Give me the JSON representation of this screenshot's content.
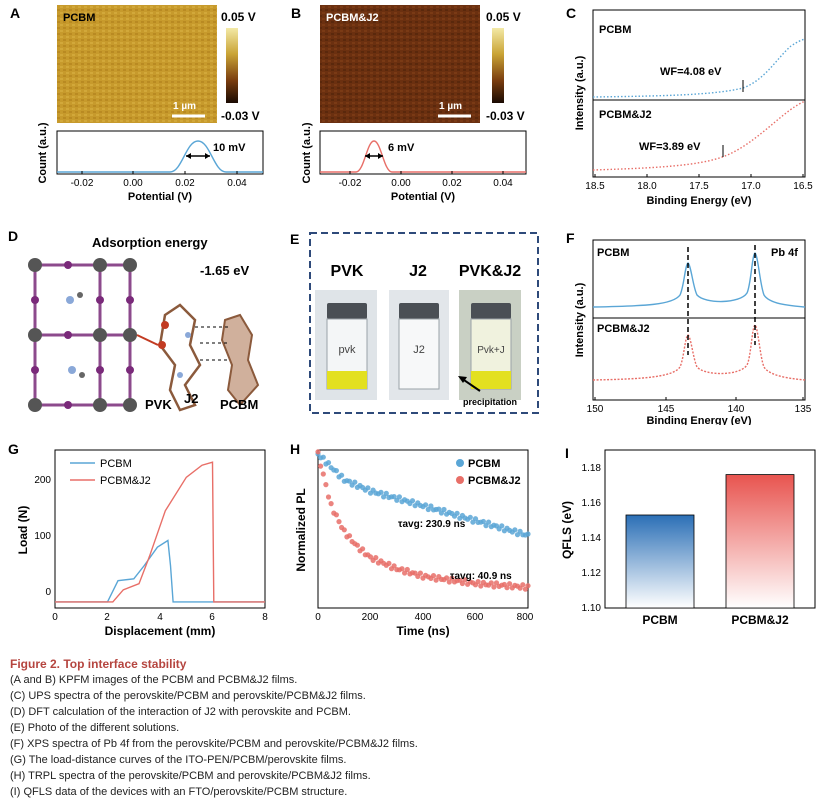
{
  "panels": {
    "A": {
      "letter": "A",
      "map_label": "PCBM",
      "cbar_max": "0.05 V",
      "cbar_min": "-0.03 V",
      "scale": "1 µm",
      "ylabel": "Count (a.u.)",
      "xlabel": "Potential (V)",
      "ticks": [
        "-0.02",
        "0.00",
        "0.02",
        "0.04"
      ],
      "fwhm": "10 mV",
      "colors": {
        "map": "#c79a2c",
        "curve": "#5aa6d6"
      }
    },
    "B": {
      "letter": "B",
      "map_label": "PCBM&J2",
      "cbar_max": "0.05 V",
      "cbar_min": "-0.03 V",
      "scale": "1 µm",
      "ylabel": "Count (a.u.)",
      "xlabel": "Potential (V)",
      "ticks": [
        "-0.02",
        "0.00",
        "0.02",
        "0.04"
      ],
      "fwhm": "6 mV",
      "colors": {
        "map": "#6b3010",
        "curve": "#e86f68"
      }
    },
    "C": {
      "letter": "C",
      "ylabel": "Intensity (a.u.)",
      "xlabel": "Binding Energy (eV)",
      "ticks": [
        "18.5",
        "18.0",
        "17.5",
        "17.0",
        "16.5"
      ],
      "top_label": "PCBM",
      "top_wf": "WF=4.08 eV",
      "bottom_label": "PCBM&J2",
      "bottom_wf": "WF=3.89 eV"
    },
    "D": {
      "letter": "D",
      "title": "Adsorption energy",
      "energy": "-1.65 eV",
      "label_pvk": "PVK",
      "label_j2": "J2",
      "label_pcbm": "PCBM"
    },
    "E": {
      "letter": "E",
      "labels": [
        "PVK",
        "J2",
        "PVK&J2"
      ],
      "note": "precipitation",
      "vial_writing": [
        "pvk",
        "J2",
        "Pvk+J"
      ]
    },
    "F": {
      "letter": "F",
      "ylabel": "Intensity (a.u.)",
      "xlabel": "Binding Energy (eV)",
      "ticks": [
        "150",
        "145",
        "140",
        "135"
      ],
      "top_label": "PCBM",
      "pb_label": "Pb 4f",
      "bottom_label": "PCBM&J2"
    },
    "G": {
      "letter": "G",
      "ylabel": "Load (N)",
      "xlabel": "Displacement (mm)",
      "xticks": [
        "0",
        "2",
        "4",
        "6",
        "8"
      ],
      "yticks": [
        "0",
        "100",
        "200"
      ],
      "legend": [
        "PCBM",
        "PCBM&J2"
      ]
    },
    "H": {
      "letter": "H",
      "ylabel": "Normalized PL",
      "xlabel": "Time (ns)",
      "xticks": [
        "0",
        "200",
        "400",
        "600",
        "800"
      ],
      "legend": [
        "PCBM",
        "PCBM&J2"
      ],
      "tau1": "τavg: 230.9 ns",
      "tau2": "τavg: 40.9 ns"
    },
    "I": {
      "letter": "I",
      "ylabel": "QFLS (eV)",
      "yticks": [
        "1.10",
        "1.12",
        "1.14",
        "1.16",
        "1.18"
      ]
    }
  },
  "chart_data": [
    {
      "type": "line",
      "title": "G: load-distance curves",
      "xlabel": "Displacement (mm)",
      "ylabel": "Load (N)",
      "xlim": [
        0,
        8
      ],
      "ylim": [
        -10,
        250
      ],
      "series": [
        {
          "name": "PCBM",
          "x": [
            0,
            2.0,
            2.4,
            3.0,
            3.4,
            3.9,
            4.3,
            4.4,
            4.5,
            8
          ],
          "y": [
            0,
            0,
            35,
            38,
            60,
            90,
            101,
            60,
            0,
            0
          ]
        },
        {
          "name": "PCBM&J2",
          "x": [
            0,
            2.2,
            2.6,
            3.2,
            3.6,
            4.2,
            5.0,
            5.6,
            6.0,
            6.05,
            8
          ],
          "y": [
            0,
            0,
            20,
            30,
            75,
            150,
            205,
            225,
            230,
            0,
            0
          ]
        }
      ]
    },
    {
      "type": "scatter",
      "title": "H: TRPL decay",
      "xlabel": "Time (ns)",
      "ylabel": "Normalized PL",
      "xlim": [
        0,
        800
      ],
      "series": [
        {
          "name": "PCBM",
          "x": [
            0,
            100,
            200,
            300,
            400,
            500,
            600,
            700,
            800
          ],
          "y": [
            1.0,
            0.86,
            0.8,
            0.76,
            0.72,
            0.68,
            0.64,
            0.6,
            0.56
          ]
        },
        {
          "name": "PCBM&J2",
          "x": [
            0,
            50,
            100,
            150,
            200,
            300,
            400,
            500,
            600,
            700,
            800
          ],
          "y": [
            1.0,
            0.72,
            0.58,
            0.5,
            0.44,
            0.38,
            0.34,
            0.32,
            0.3,
            0.29,
            0.28
          ]
        }
      ]
    },
    {
      "type": "bar",
      "title": "I: QFLS",
      "ylabel": "QFLS (eV)",
      "categories": [
        "PCBM",
        "PCBM&J2"
      ],
      "values": [
        1.153,
        1.176
      ],
      "ylim": [
        1.1,
        1.19
      ]
    }
  ],
  "caption": {
    "title": "Figure 2. Top interface stability",
    "lines": [
      "(A and B) KPFM images of the PCBM and PCBM&J2 films.",
      "(C) UPS spectra of the perovskite/PCBM and perovskite/PCBM&J2 films.",
      "(D) DFT calculation of the interaction of J2 with perovskite and PCBM.",
      "(E) Photo of the different solutions.",
      "(F) XPS spectra of Pb 4f from the perovskite/PCBM and perovskite/PCBM&J2 films.",
      "(G) The load-distance curves of the ITO-PEN/PCBM/perovskite films.",
      "(H) TRPL spectra of the perovskite/PCBM and perovskite/PCBM&J2 films.",
      "(I) QFLS data of the devices with an FTO/perovskite/PCBM structure."
    ]
  }
}
